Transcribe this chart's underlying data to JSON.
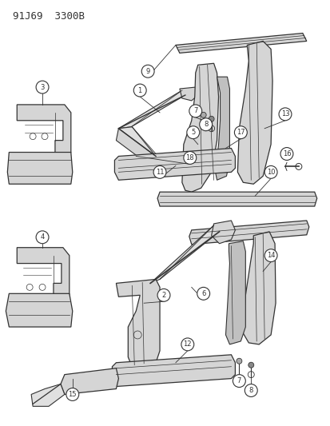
{
  "title_code": "91J69  3300B",
  "bg_color": "#ffffff",
  "fig_width": 4.14,
  "fig_height": 5.33,
  "dpi": 100,
  "line_color": "#333333",
  "fill_light": "#e8e8e8",
  "fill_mid": "#d5d5d5",
  "fill_dark": "#c0c0c0"
}
